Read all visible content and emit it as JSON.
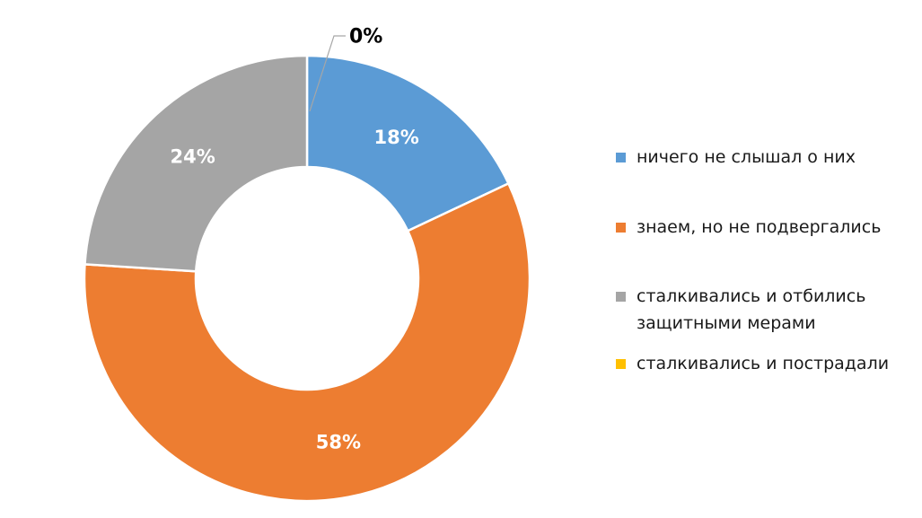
{
  "chart_data": {
    "type": "donut",
    "title": "",
    "categories": [
      "ничего не слышал о них",
      "знаем, но не подвергались",
      "сталкивались и отбились защитными мерами",
      "сталкивались и пострадали"
    ],
    "values": [
      18,
      58,
      24,
      0
    ],
    "data_labels": [
      "18%",
      "58%",
      "24%",
      "0%"
    ],
    "colors": [
      "#5B9BD5",
      "#ED7D31",
      "#A5A5A5",
      "#FFC000"
    ],
    "start_angle_deg": 0,
    "direction": "clockwise",
    "hole_ratio": 0.5,
    "legend_position": "right",
    "grid": false,
    "slice_label_color": "#FFFFFF",
    "zero_callout": {
      "label": "0%",
      "label_color": "#000000",
      "leader_color": "#A6A6A6"
    }
  },
  "legend": {
    "items": [
      {
        "label": "ничего не слышал о них"
      },
      {
        "label": "знаем, но не подвергались"
      },
      {
        "label": "сталкивались и отбились\nзащитными мерами"
      },
      {
        "label": "сталкивались и пострадали"
      }
    ]
  }
}
